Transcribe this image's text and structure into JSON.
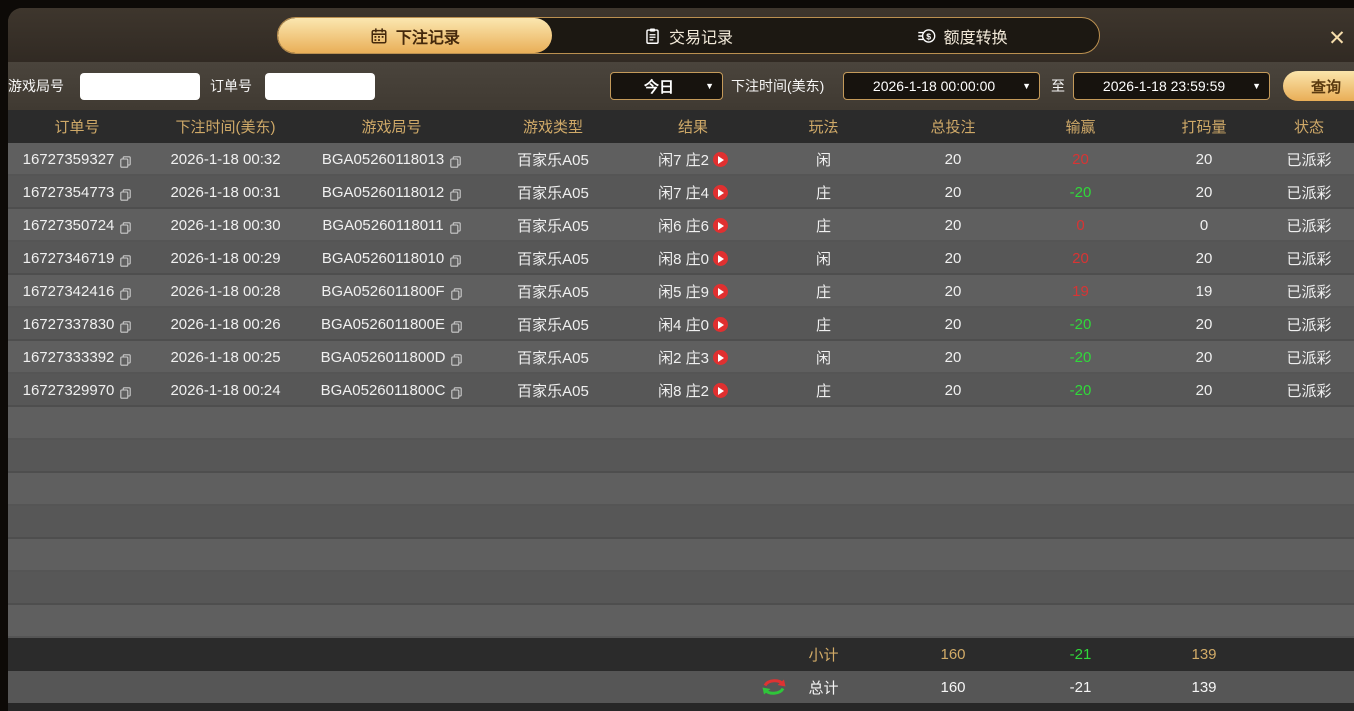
{
  "tabs": [
    {
      "label": "下注记录",
      "icon": "calendar-icon",
      "active": true
    },
    {
      "label": "交易记录",
      "icon": "clipboard-icon",
      "active": false
    },
    {
      "label": "额度转换",
      "icon": "coins-icon",
      "active": false
    }
  ],
  "close_glyph": "✕",
  "filters": {
    "game_round_label": "游戏局号",
    "game_round_value": "",
    "order_no_label": "订单号",
    "order_no_value": "",
    "range_preset": "今日",
    "bet_time_label": "下注时间(美东)",
    "start_time": "2026-1-18 00:00:00",
    "to_label": "至",
    "end_time": "2026-1-18 23:59:59",
    "query_label": "查询",
    "dropdown_arrow": "▼"
  },
  "table": {
    "headers": [
      "订单号",
      "下注时间(美东)",
      "游戏局号",
      "游戏类型",
      "结果",
      "玩法",
      "总投注",
      "输赢",
      "打码量",
      "状态"
    ],
    "rows": [
      {
        "order": "16727359327",
        "time": "2026-1-18 00:32",
        "round": "BGA05260118013",
        "type": "百家乐A05",
        "result": "闲7 庄2",
        "play": "闲",
        "bet": "20",
        "winloss": "20",
        "winloss_color": "red",
        "wager": "20",
        "status": "已派彩"
      },
      {
        "order": "16727354773",
        "time": "2026-1-18 00:31",
        "round": "BGA05260118012",
        "type": "百家乐A05",
        "result": "闲7 庄4",
        "play": "庄",
        "bet": "20",
        "winloss": "-20",
        "winloss_color": "green",
        "wager": "20",
        "status": "已派彩"
      },
      {
        "order": "16727350724",
        "time": "2026-1-18 00:30",
        "round": "BGA05260118011",
        "type": "百家乐A05",
        "result": "闲6 庄6",
        "play": "庄",
        "bet": "20",
        "winloss": "0",
        "winloss_color": "red",
        "wager": "0",
        "status": "已派彩"
      },
      {
        "order": "16727346719",
        "time": "2026-1-18 00:29",
        "round": "BGA05260118010",
        "type": "百家乐A05",
        "result": "闲8 庄0",
        "play": "闲",
        "bet": "20",
        "winloss": "20",
        "winloss_color": "red",
        "wager": "20",
        "status": "已派彩"
      },
      {
        "order": "16727342416",
        "time": "2026-1-18 00:28",
        "round": "BGA0526011800F",
        "type": "百家乐A05",
        "result": "闲5 庄9",
        "play": "庄",
        "bet": "20",
        "winloss": "19",
        "winloss_color": "red",
        "wager": "19",
        "status": "已派彩"
      },
      {
        "order": "16727337830",
        "time": "2026-1-18 00:26",
        "round": "BGA0526011800E",
        "type": "百家乐A05",
        "result": "闲4 庄0",
        "play": "庄",
        "bet": "20",
        "winloss": "-20",
        "winloss_color": "green",
        "wager": "20",
        "status": "已派彩"
      },
      {
        "order": "16727333392",
        "time": "2026-1-18 00:25",
        "round": "BGA0526011800D",
        "type": "百家乐A05",
        "result": "闲2 庄3",
        "play": "闲",
        "bet": "20",
        "winloss": "-20",
        "winloss_color": "green",
        "wager": "20",
        "status": "已派彩"
      },
      {
        "order": "16727329970",
        "time": "2026-1-18 00:24",
        "round": "BGA0526011800C",
        "type": "百家乐A05",
        "result": "闲8 庄2",
        "play": "庄",
        "bet": "20",
        "winloss": "-20",
        "winloss_color": "green",
        "wager": "20",
        "status": "已派彩"
      }
    ],
    "empty_row_count": 7,
    "subtotal": {
      "label": "小计",
      "bet": "160",
      "winloss": "-21",
      "wager": "139"
    },
    "total": {
      "label": "总计",
      "bet": "160",
      "winloss": "-21",
      "wager": "139"
    }
  },
  "icons": {
    "row_copy": "copy-icon",
    "result_play": "play-icon",
    "total_swap": "swap-arrows-icon"
  },
  "colors": {
    "accent_gold": "#e9b058",
    "header_text": "#cfa968",
    "win_red": "#d83434",
    "loss_green": "#30d83a",
    "row_light": "#5f5f5f",
    "row_dark": "#575757"
  }
}
